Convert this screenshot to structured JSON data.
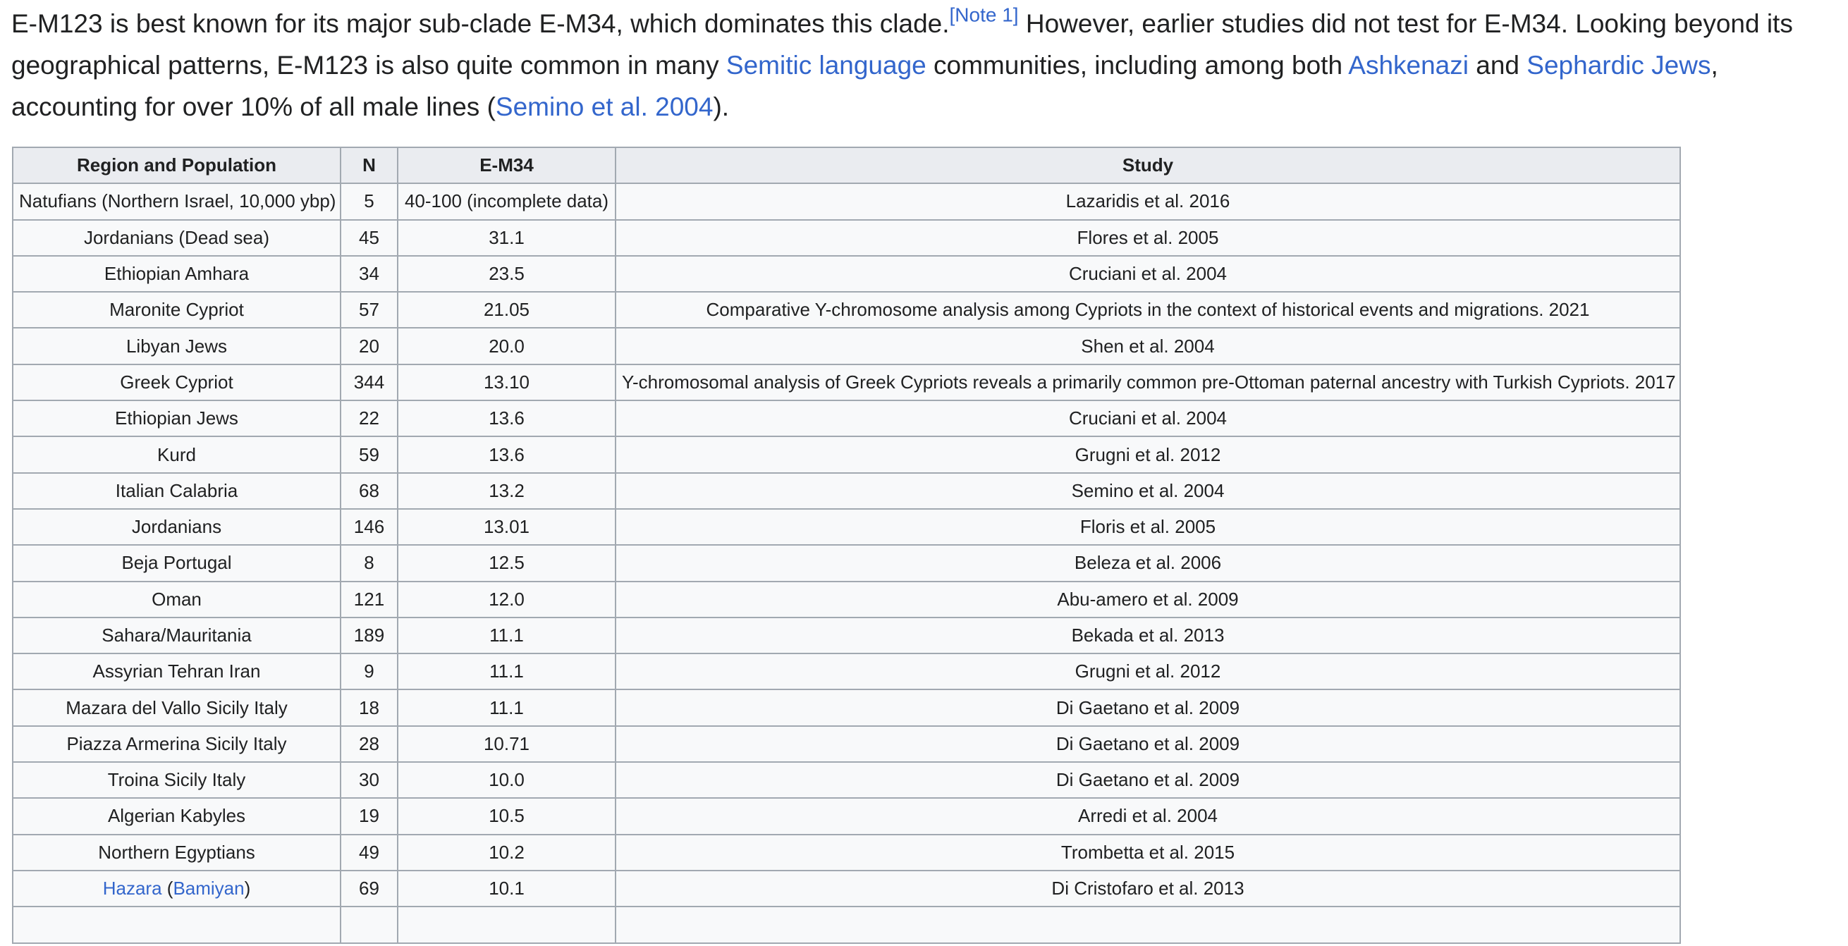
{
  "intro": {
    "t1": "E-M123 is best known for its major sub-clade E-M34, which dominates this clade.",
    "note": "[Note 1]",
    "t2": " However, earlier studies did not test for E-M34. Looking beyond its geographical patterns, E-M123 is also quite common in many ",
    "link_semitic": "Semitic language",
    "t3": " communities, including among both ",
    "link_ashkenazi": "Ashkenazi",
    "t4": " and ",
    "link_sephardic": "Sephardic Jews",
    "t5": ", accounting for over 10% of all male lines (",
    "link_semino": "Semino et al. 2004",
    "t6": ")."
  },
  "table": {
    "headers": {
      "region": "Region and Population",
      "n": "N",
      "em34": "E-M34",
      "study": "Study"
    },
    "rows": [
      {
        "region": "Natufians (Northern Israel, 10,000 ybp)",
        "n": "5",
        "em34": "40-100 (incomplete data)",
        "study": "Lazaridis et al. 2016"
      },
      {
        "region": "Jordanians (Dead sea)",
        "n": "45",
        "em34": "31.1",
        "study": "Flores et al. 2005"
      },
      {
        "region": "Ethiopian Amhara",
        "n": "34",
        "em34": "23.5",
        "study": "Cruciani et al. 2004"
      },
      {
        "region": "Maronite Cypriot",
        "n": "57",
        "em34": "21.05",
        "study": "Comparative Y-chromosome analysis among Cypriots in the context of historical events and migrations. 2021"
      },
      {
        "region": "Libyan Jews",
        "n": "20",
        "em34": "20.0",
        "study": "Shen et al. 2004"
      },
      {
        "region": "Greek Cypriot",
        "n": "344",
        "em34": "13.10",
        "study": "Y-chromosomal analysis of Greek Cypriots reveals a primarily common pre-Ottoman paternal ancestry with Turkish Cypriots. 2017"
      },
      {
        "region": "Ethiopian Jews",
        "n": "22",
        "em34": "13.6",
        "study": "Cruciani et al. 2004"
      },
      {
        "region": "Kurd",
        "n": "59",
        "em34": "13.6",
        "study": "Grugni et al. 2012"
      },
      {
        "region": "Italian Calabria",
        "n": "68",
        "em34": "13.2",
        "study": "Semino et al. 2004"
      },
      {
        "region": "Jordanians",
        "n": "146",
        "em34": "13.01",
        "study": "Floris et al. 2005"
      },
      {
        "region": "Beja Portugal",
        "n": "8",
        "em34": "12.5",
        "study": "Beleza et al. 2006"
      },
      {
        "region": "Oman",
        "n": "121",
        "em34": "12.0",
        "study": "Abu-amero et al. 2009"
      },
      {
        "region": "Sahara/Mauritania",
        "n": "189",
        "em34": "11.1",
        "study": "Bekada et al. 2013"
      },
      {
        "region": "Assyrian Tehran Iran",
        "n": "9",
        "em34": "11.1",
        "study": "Grugni et al. 2012"
      },
      {
        "region": "Mazara del Vallo Sicily Italy",
        "n": "18",
        "em34": "11.1",
        "study": "Di Gaetano et al. 2009"
      },
      {
        "region": "Piazza Armerina Sicily Italy",
        "n": "28",
        "em34": "10.71",
        "study": "Di Gaetano et al. 2009"
      },
      {
        "region": "Troina Sicily Italy",
        "n": "30",
        "em34": "10.0",
        "study": "Di Gaetano et al. 2009"
      },
      {
        "region": "Algerian Kabyles",
        "n": "19",
        "em34": "10.5",
        "study": "Arredi et al. 2004"
      },
      {
        "region": "Northern Egyptians",
        "n": "49",
        "em34": "10.2",
        "study": "Trombetta et al. 2015"
      }
    ],
    "hazara_row": {
      "region_link": "Hazara",
      "open_paren": " (",
      "bamiyan_link": "Bamiyan",
      "close_paren": ")",
      "n": "69",
      "em34": "10.1",
      "study": "Di Cristofaro et al. 2013"
    },
    "next_row": {
      "region": "",
      "n": "",
      "em34": "",
      "study": ""
    }
  }
}
